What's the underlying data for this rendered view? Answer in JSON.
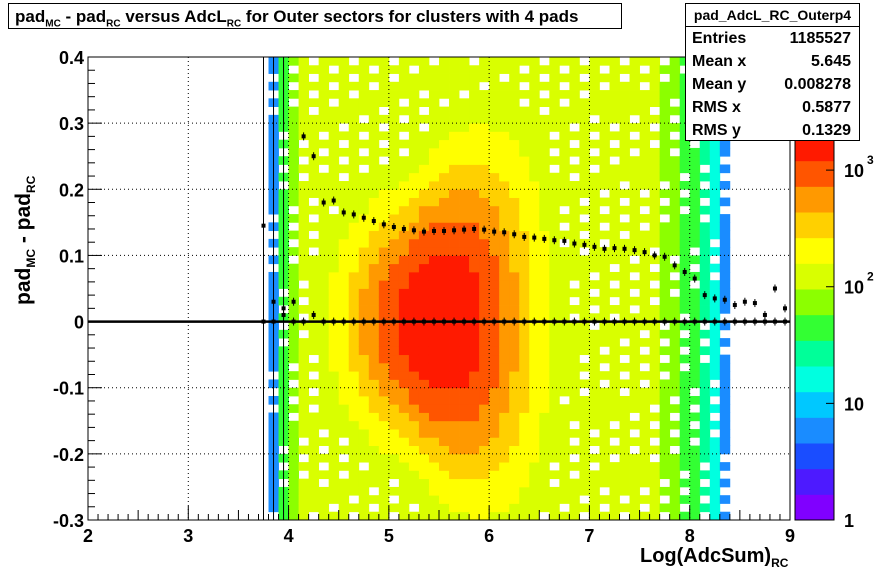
{
  "title": {
    "parts": [
      {
        "t": "pad",
        "sub": "MC"
      },
      {
        "t": " - pad",
        "sub": "RC"
      },
      {
        "t": " versus AdcL",
        "sub": "RC"
      },
      {
        "t": " for Outer sectors for clusters with 4 pads",
        "sub": ""
      }
    ]
  },
  "stats": {
    "name": "pad_AdcL_RC_Outerp4",
    "rows": [
      {
        "label": "Entries",
        "value": "1185527"
      },
      {
        "label": "Mean x",
        "value": "5.645"
      },
      {
        "label": "Mean y",
        "value": "0.008278"
      },
      {
        "label": "RMS x",
        "value": "0.5877"
      },
      {
        "label": "RMS y",
        "value": "0.1329"
      }
    ]
  },
  "colors": {
    "palette": [
      "#8000ff",
      "#4d1aff",
      "#1a4dff",
      "#1a8cff",
      "#00c8ff",
      "#00ffe0",
      "#00ff99",
      "#33ff33",
      "#8cff00",
      "#d9ff00",
      "#ffff00",
      "#ffd000",
      "#ff9900",
      "#ff5500",
      "#ff1a00"
    ]
  },
  "chart_data": {
    "type": "heatmap",
    "title": "pad_MC - pad_RC versus AdcL_RC for Outer sectors for clusters with 4 pads",
    "xlabel_main": "Log(AdcSum)",
    "xlabel_sub": "RC",
    "ylabel_main": "pad",
    "ylabel_sub1": "MC",
    "ylabel_mid": " - pad",
    "ylabel_sub2": "RC",
    "xlim": [
      2,
      9
    ],
    "ylim": [
      -0.3,
      0.4
    ],
    "x_ticks": [
      2,
      3,
      4,
      5,
      6,
      7,
      8,
      9
    ],
    "x_tick_labels": [
      "2",
      "3",
      "4",
      "5",
      "6",
      "7",
      "8",
      "9"
    ],
    "y_ticks": [
      -0.3,
      -0.2,
      -0.1,
      0,
      0.1,
      0.2,
      0.3,
      0.4
    ],
    "y_tick_labels": [
      "-0.3",
      "-0.2",
      "-0.1",
      "0",
      "0.1",
      "0.2",
      "0.3",
      "0.4"
    ],
    "grid": true,
    "z_scale": "log",
    "z_range": [
      1,
      2000
    ],
    "z_tick_labels": [
      "1",
      "10",
      "10",
      "10"
    ],
    "z_tick_exponents": [
      "",
      "",
      "2",
      "3"
    ],
    "profile_mean": {
      "x": [
        3.75,
        3.85,
        3.95,
        4.05,
        4.15,
        4.25,
        4.35,
        4.45,
        4.55,
        4.65,
        4.75,
        4.85,
        4.95,
        5.05,
        5.15,
        5.25,
        5.35,
        5.45,
        5.55,
        5.65,
        5.75,
        5.85,
        5.95,
        6.05,
        6.15,
        6.25,
        6.35,
        6.45,
        6.55,
        6.65,
        6.75,
        6.85,
        6.95,
        7.05,
        7.15,
        7.25,
        7.35,
        7.45,
        7.55,
        7.65,
        7.75,
        7.85,
        7.95,
        8.05,
        8.15,
        8.25,
        8.35,
        8.45,
        8.55,
        8.65,
        8.75,
        8.85,
        8.95
      ],
      "y": [
        0.0,
        0.0,
        0.01,
        0.0,
        0.0,
        0.01,
        0.0,
        0.0,
        0.0,
        0.0,
        0.0,
        0.0,
        0.0,
        0.0,
        0.0,
        0.0,
        0.0,
        0.0,
        0.0,
        0.0,
        0.0,
        0.0,
        0.0,
        0.0,
        0.0,
        0.0,
        0.0,
        0.0,
        0.0,
        0.0,
        0.0,
        0.0,
        0.0,
        0.0,
        0.0,
        0.0,
        0.0,
        0.0,
        0.0,
        0.0,
        0.0,
        0.0,
        0.0,
        0.0,
        0.0,
        0.0,
        0.0,
        0.0,
        0.0,
        0.0,
        0.0,
        0.0,
        0.0
      ]
    },
    "profile_rms": {
      "x": [
        3.75,
        3.85,
        3.95,
        4.05,
        4.15,
        4.25,
        4.35,
        4.45,
        4.55,
        4.65,
        4.75,
        4.85,
        4.95,
        5.05,
        5.15,
        5.25,
        5.35,
        5.45,
        5.55,
        5.65,
        5.75,
        5.85,
        5.95,
        6.05,
        6.15,
        6.25,
        6.35,
        6.45,
        6.55,
        6.65,
        6.75,
        6.85,
        6.95,
        7.05,
        7.15,
        7.25,
        7.35,
        7.45,
        7.55,
        7.65,
        7.75,
        7.85,
        7.95,
        8.05,
        8.15,
        8.25,
        8.35,
        8.45,
        8.55,
        8.65,
        8.75,
        8.85,
        8.95
      ],
      "y": [
        0.145,
        0.03,
        0.02,
        0.03,
        0.28,
        0.25,
        0.18,
        0.183,
        0.165,
        0.162,
        0.157,
        0.152,
        0.147,
        0.143,
        0.14,
        0.138,
        0.136,
        0.137,
        0.137,
        0.138,
        0.139,
        0.14,
        0.139,
        0.136,
        0.135,
        0.132,
        0.128,
        0.127,
        0.125,
        0.123,
        0.122,
        0.118,
        0.116,
        0.113,
        0.11,
        0.111,
        0.11,
        0.108,
        0.105,
        0.1,
        0.098,
        0.085,
        0.075,
        0.065,
        0.04,
        0.035,
        0.033,
        0.025,
        0.03,
        0.028,
        0.01,
        0.05,
        0.02
      ]
    }
  }
}
